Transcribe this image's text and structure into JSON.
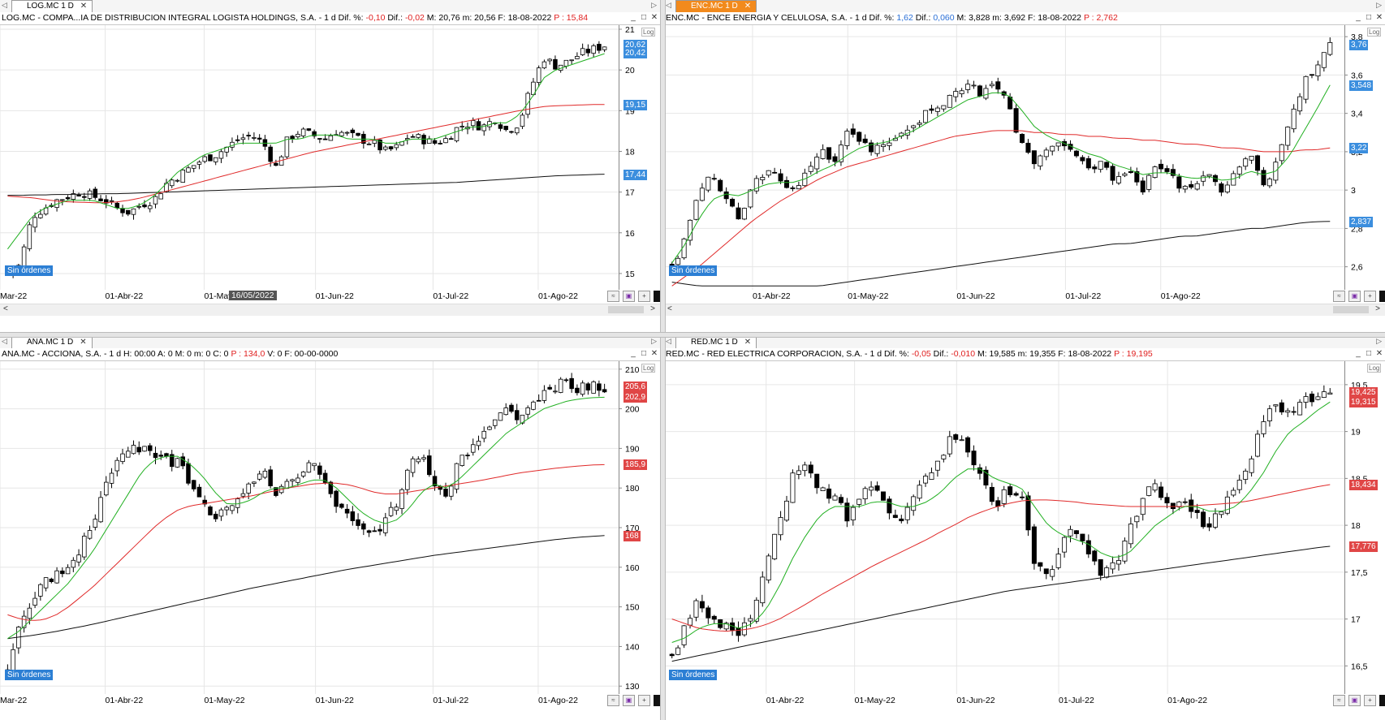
{
  "panels": [
    {
      "id": "log",
      "tab_label": "LOG.MC 1 D",
      "tab_active": false,
      "title_parts": [
        {
          "text": "LOG.MC - COMPA...IA DE DISTRIBUCION INTEGRAL LOGISTA HOLDINGS, S.A. -  1 d  Dif. %: ",
          "cls": ""
        },
        {
          "text": "-0,10",
          "cls": "neg"
        },
        {
          "text": "  Dif.: ",
          "cls": ""
        },
        {
          "text": "-0,02",
          "cls": "neg"
        },
        {
          "text": "  M: 20,76  m: 20,56  F: 18-08-2022  ",
          "cls": ""
        },
        {
          "text": "P : 15,84",
          "cls": "neg"
        }
      ],
      "y_ticks": [
        "21",
        "20",
        "19",
        "18",
        "17",
        "16",
        "15"
      ],
      "y_tick_values": [
        21,
        20,
        19,
        18,
        17,
        16,
        15
      ],
      "y_range": [
        14.6,
        21.1
      ],
      "x_ticks": [
        "Mar-22",
        "01-Abr-22",
        "01-May",
        "01-Jun-22",
        "01-Jul-22",
        "01-Ago-22"
      ],
      "hover_date": "16/05/2022",
      "price_tags": [
        {
          "value": "20,62",
          "color": "blue"
        },
        {
          "value": "20,42",
          "color": "blue"
        },
        {
          "value": "19,15",
          "color": "blue"
        },
        {
          "value": "17,44",
          "color": "blue"
        }
      ],
      "price_tag_values": [
        20.62,
        20.42,
        19.15,
        17.44
      ],
      "path": [
        15.0,
        15.2,
        16.4,
        16.6,
        16.8,
        16.9,
        17.0,
        16.9,
        16.8,
        16.6,
        16.5,
        16.7,
        16.8,
        17.2,
        17.4,
        17.6,
        17.8,
        17.9,
        18.1,
        18.3,
        18.4,
        18.2,
        17.6,
        18.3,
        18.5,
        18.4,
        18.3,
        18.5,
        18.4,
        18.3,
        18.2,
        18.0,
        18.1,
        18.4,
        18.3,
        18.2,
        18.3,
        18.6,
        18.7,
        18.6,
        18.8,
        18.5,
        18.7,
        19.6,
        20.3,
        20.1,
        20.2,
        20.4,
        20.5,
        20.6
      ],
      "ma_fast": [
        15.6,
        16.0,
        16.4,
        16.6,
        16.7,
        16.8,
        16.8,
        16.8,
        16.7,
        16.6,
        16.6,
        16.7,
        16.9,
        17.2,
        17.5,
        17.7,
        17.9,
        18.0,
        18.1,
        18.2,
        18.2,
        18.2,
        18.2,
        18.3,
        18.3,
        18.4,
        18.4,
        18.4,
        18.3,
        18.3,
        18.3,
        18.2,
        18.2,
        18.3,
        18.3,
        18.3,
        18.4,
        18.5,
        18.6,
        18.6,
        18.7,
        18.7,
        18.9,
        19.3,
        19.8,
        20.0,
        20.1,
        20.2,
        20.3,
        20.4
      ],
      "ma_mid": [
        16.9,
        16.88,
        16.86,
        16.82,
        16.78,
        16.76,
        16.75,
        16.74,
        16.74,
        16.76,
        16.8,
        16.86,
        16.94,
        17.02,
        17.1,
        17.18,
        17.26,
        17.34,
        17.42,
        17.5,
        17.58,
        17.66,
        17.74,
        17.82,
        17.9,
        17.98,
        18.04,
        18.1,
        18.16,
        18.22,
        18.28,
        18.34,
        18.4,
        18.46,
        18.52,
        18.58,
        18.64,
        18.7,
        18.76,
        18.82,
        18.88,
        18.94,
        19.0,
        19.05,
        19.1,
        19.12,
        19.13,
        19.14,
        19.15,
        19.15
      ],
      "ma_slow": [
        16.92,
        16.92,
        16.93,
        16.93,
        16.94,
        16.94,
        16.95,
        16.95,
        16.96,
        16.96,
        16.97,
        16.98,
        16.99,
        17.0,
        17.01,
        17.02,
        17.03,
        17.04,
        17.05,
        17.06,
        17.07,
        17.08,
        17.09,
        17.1,
        17.11,
        17.12,
        17.13,
        17.14,
        17.15,
        17.16,
        17.17,
        17.18,
        17.19,
        17.2,
        17.21,
        17.22,
        17.23,
        17.24,
        17.26,
        17.28,
        17.3,
        17.32,
        17.34,
        17.36,
        17.38,
        17.4,
        17.41,
        17.42,
        17.43,
        17.44
      ],
      "show_scrollbar": true
    },
    {
      "id": "enc",
      "tab_label": "ENC.MC 1 D",
      "tab_active": true,
      "title_parts": [
        {
          "text": "ENC.MC - ENCE ENERGIA Y CELULOSA, S.A. -  1 d  Dif. %: ",
          "cls": ""
        },
        {
          "text": "1,62",
          "cls": "pos"
        },
        {
          "text": "  Dif.: ",
          "cls": ""
        },
        {
          "text": "0,060",
          "cls": "pos"
        },
        {
          "text": "  M: 3,828  m: 3,692  F: 18-08-2022  ",
          "cls": ""
        },
        {
          "text": "P : 2,762",
          "cls": "neg"
        }
      ],
      "y_ticks": [
        "3,8",
        "3,6",
        "3,4",
        "3,2",
        "3",
        "2,8",
        "2,6"
      ],
      "y_tick_values": [
        3.8,
        3.6,
        3.4,
        3.2,
        3.0,
        2.8,
        2.6
      ],
      "y_range": [
        2.48,
        3.86
      ],
      "x_ticks": [
        "01-Abr-22",
        "01-May-22",
        "01-Jun-22",
        "01-Jul-22",
        "01-Ago-22"
      ],
      "hover_date": "",
      "price_tags": [
        {
          "value": "3,76",
          "color": "blue"
        },
        {
          "value": "3,548",
          "color": "blue"
        },
        {
          "value": "3,22",
          "color": "blue"
        },
        {
          "value": "2,837",
          "color": "blue"
        }
      ],
      "price_tag_values": [
        3.76,
        3.548,
        3.22,
        2.837
      ],
      "path": [
        2.6,
        2.75,
        3.0,
        3.1,
        2.95,
        2.85,
        3.05,
        3.1,
        3.05,
        3.0,
        3.1,
        3.2,
        3.15,
        3.3,
        3.25,
        3.2,
        3.25,
        3.3,
        3.35,
        3.4,
        3.45,
        3.5,
        3.55,
        3.5,
        3.55,
        3.45,
        3.25,
        3.15,
        3.2,
        3.25,
        3.2,
        3.1,
        3.15,
        3.05,
        3.1,
        3.0,
        3.15,
        3.1,
        3.0,
        3.05,
        3.1,
        3.0,
        3.1,
        3.2,
        3.0,
        3.15,
        3.35,
        3.55,
        3.65,
        3.76
      ],
      "ma_fast": [
        2.62,
        2.72,
        2.85,
        2.95,
        2.98,
        2.97,
        3.0,
        3.03,
        3.04,
        3.04,
        3.06,
        3.1,
        3.13,
        3.18,
        3.22,
        3.24,
        3.25,
        3.28,
        3.31,
        3.35,
        3.39,
        3.43,
        3.47,
        3.49,
        3.51,
        3.5,
        3.42,
        3.33,
        3.28,
        3.25,
        3.22,
        3.19,
        3.17,
        3.13,
        3.11,
        3.08,
        3.09,
        3.09,
        3.07,
        3.06,
        3.07,
        3.05,
        3.06,
        3.1,
        3.08,
        3.1,
        3.18,
        3.3,
        3.42,
        3.548
      ],
      "ma_mid": [
        2.5,
        2.55,
        2.6,
        2.66,
        2.72,
        2.78,
        2.84,
        2.89,
        2.94,
        2.98,
        3.02,
        3.06,
        3.09,
        3.12,
        3.14,
        3.16,
        3.18,
        3.2,
        3.22,
        3.24,
        3.26,
        3.28,
        3.29,
        3.3,
        3.31,
        3.31,
        3.31,
        3.3,
        3.3,
        3.29,
        3.29,
        3.28,
        3.28,
        3.27,
        3.27,
        3.26,
        3.26,
        3.25,
        3.24,
        3.24,
        3.23,
        3.22,
        3.22,
        3.21,
        3.2,
        3.2,
        3.2,
        3.21,
        3.21,
        3.22
      ],
      "ma_slow": [
        2.52,
        2.51,
        2.5,
        2.5,
        2.5,
        2.5,
        2.5,
        2.5,
        2.5,
        2.5,
        2.5,
        2.5,
        2.51,
        2.52,
        2.53,
        2.54,
        2.55,
        2.56,
        2.57,
        2.58,
        2.59,
        2.6,
        2.61,
        2.62,
        2.63,
        2.64,
        2.65,
        2.66,
        2.67,
        2.68,
        2.69,
        2.7,
        2.71,
        2.72,
        2.72,
        2.73,
        2.74,
        2.75,
        2.76,
        2.76,
        2.77,
        2.78,
        2.79,
        2.8,
        2.8,
        2.81,
        2.82,
        2.83,
        2.835,
        2.837
      ],
      "show_scrollbar": true
    },
    {
      "id": "ana",
      "tab_label": "ANA.MC 1 D",
      "tab_active": false,
      "title_parts": [
        {
          "text": "ANA.MC - ACCIONA, S.A. -  1 d  H: 00:00  A: 0  M: 0  m: 0  C: 0  ",
          "cls": ""
        },
        {
          "text": "P : 134,0",
          "cls": "neg"
        },
        {
          "text": "  V: 0  F: 00-00-0000",
          "cls": ""
        }
      ],
      "y_ticks": [
        "210",
        "200",
        "190",
        "180",
        "170",
        "160",
        "150",
        "140",
        "130"
      ],
      "y_tick_values": [
        210,
        200,
        190,
        180,
        170,
        160,
        150,
        140,
        130
      ],
      "y_range": [
        128,
        212
      ],
      "x_ticks": [
        "Mar-22",
        "01-Abr-22",
        "01-May-22",
        "01-Jun-22",
        "01-Jul-22",
        "01-Ago-22"
      ],
      "hover_date": "",
      "price_tags": [
        {
          "value": "205,6",
          "color": "red"
        },
        {
          "value": "202,9",
          "color": "red"
        },
        {
          "value": "185,9",
          "color": "red"
        },
        {
          "value": "168",
          "color": "red"
        }
      ],
      "price_tag_values": [
        205.6,
        202.9,
        185.9,
        168
      ],
      "path": [
        134,
        145,
        152,
        156,
        158,
        160,
        165,
        172,
        180,
        186,
        189,
        190,
        188,
        187,
        186,
        182,
        176,
        172,
        174,
        178,
        180,
        184,
        178,
        182,
        184,
        186,
        181,
        176,
        172,
        170,
        168,
        172,
        176,
        185,
        190,
        180,
        178,
        186,
        190,
        194,
        198,
        200,
        198,
        200,
        204,
        206,
        207,
        205,
        206,
        205.6
      ],
      "ma_fast": [
        142,
        144,
        147,
        150,
        153,
        156,
        160,
        164,
        169,
        174,
        179,
        184,
        187,
        188,
        188,
        186,
        183,
        179,
        176,
        176,
        177,
        179,
        180,
        180,
        181,
        182,
        182,
        180,
        177,
        174,
        172,
        171,
        172,
        175,
        179,
        181,
        180,
        182,
        185,
        188,
        191,
        194,
        196,
        198,
        200,
        201,
        202,
        202.5,
        202.8,
        202.9
      ],
      "ma_mid": [
        148,
        147,
        146.5,
        146.8,
        148,
        150,
        152.5,
        155,
        158,
        161,
        164,
        167,
        170,
        172.5,
        174.5,
        175.5,
        176,
        176.5,
        177,
        177.5,
        178,
        178.7,
        179.3,
        180,
        180.5,
        181,
        181.2,
        181.2,
        180.8,
        180,
        179,
        178.5,
        178.5,
        179,
        179.5,
        180,
        180.5,
        181,
        181.5,
        182,
        182.6,
        183.2,
        183.8,
        184.2,
        184.6,
        185,
        185.3,
        185.6,
        185.8,
        185.9
      ],
      "ma_slow": [
        142.0,
        142.4,
        142.8,
        143.3,
        143.8,
        144.4,
        145.0,
        145.6,
        146.3,
        147.0,
        147.7,
        148.4,
        149.1,
        149.8,
        150.5,
        151.2,
        151.9,
        152.6,
        153.3,
        154.0,
        154.7,
        155.3,
        155.9,
        156.5,
        157.1,
        157.7,
        158.3,
        158.9,
        159.5,
        160.0,
        160.5,
        161.0,
        161.5,
        162.0,
        162.5,
        163.0,
        163.4,
        163.8,
        164.2,
        164.6,
        165.0,
        165.4,
        165.8,
        166.2,
        166.6,
        167.0,
        167.3,
        167.6,
        167.8,
        168.0
      ],
      "show_scrollbar": false
    },
    {
      "id": "red",
      "tab_label": "RED.MC 1 D",
      "tab_active": false,
      "title_parts": [
        {
          "text": "RED.MC - RED ELECTRICA CORPORACION, S.A. -  1 d  Dif. %: ",
          "cls": ""
        },
        {
          "text": "-0,05",
          "cls": "neg"
        },
        {
          "text": "  Dif.: ",
          "cls": ""
        },
        {
          "text": "-0,010",
          "cls": "neg"
        },
        {
          "text": "  M: 19,585  m: 19,355  F: 18-08-2022  ",
          "cls": ""
        },
        {
          "text": "P : 19,195",
          "cls": "neg"
        }
      ],
      "y_ticks": [
        "19,5",
        "19",
        "18,5",
        "18",
        "17,5",
        "17",
        "16,5"
      ],
      "y_tick_values": [
        19.5,
        19.0,
        18.5,
        18.0,
        17.5,
        17.0,
        16.5
      ],
      "y_range": [
        16.2,
        19.75
      ],
      "x_ticks": [
        "01-Abr-22",
        "01-May-22",
        "01-Jun-22",
        "01-Jul-22",
        "01-Ago-22"
      ],
      "hover_date": "",
      "price_tags": [
        {
          "value": "19,425",
          "color": "red"
        },
        {
          "value": "19,315",
          "color": "red"
        },
        {
          "value": "18,434",
          "color": "red"
        },
        {
          "value": "17,776",
          "color": "red"
        }
      ],
      "price_tag_values": [
        19.425,
        19.315,
        18.434,
        17.776
      ],
      "path": [
        16.6,
        16.9,
        17.2,
        17.0,
        16.9,
        16.8,
        17.1,
        17.6,
        18.1,
        18.5,
        18.6,
        18.4,
        18.3,
        18.1,
        18.3,
        18.4,
        18.2,
        18.0,
        18.3,
        18.5,
        18.7,
        19.0,
        18.8,
        18.5,
        18.2,
        18.4,
        18.3,
        17.6,
        17.4,
        17.8,
        18.0,
        17.7,
        17.5,
        17.6,
        17.9,
        18.3,
        18.4,
        18.2,
        18.3,
        18.1,
        18.0,
        18.2,
        18.4,
        18.7,
        19.1,
        19.3,
        19.2,
        19.3,
        19.4,
        19.425
      ],
      "ma_fast": [
        16.75,
        16.8,
        16.9,
        16.95,
        16.95,
        16.9,
        16.95,
        17.1,
        17.35,
        17.65,
        17.9,
        18.1,
        18.2,
        18.2,
        18.2,
        18.25,
        18.25,
        18.2,
        18.2,
        18.25,
        18.35,
        18.5,
        18.6,
        18.6,
        18.5,
        18.45,
        18.4,
        18.2,
        18.0,
        17.9,
        17.85,
        17.8,
        17.7,
        17.65,
        17.7,
        17.85,
        18.0,
        18.1,
        18.2,
        18.2,
        18.15,
        18.15,
        18.2,
        18.35,
        18.55,
        18.8,
        19.0,
        19.1,
        19.22,
        19.315
      ],
      "ma_mid": [
        17.0,
        16.95,
        16.9,
        16.88,
        16.87,
        16.88,
        16.9,
        16.94,
        17.0,
        17.08,
        17.16,
        17.25,
        17.33,
        17.41,
        17.49,
        17.57,
        17.64,
        17.71,
        17.78,
        17.85,
        17.93,
        18.0,
        18.08,
        18.14,
        18.19,
        18.23,
        18.26,
        18.27,
        18.27,
        18.26,
        18.25,
        18.23,
        18.22,
        18.21,
        18.2,
        18.2,
        18.2,
        18.2,
        18.2,
        18.21,
        18.22,
        18.23,
        18.24,
        18.26,
        18.29,
        18.32,
        18.35,
        18.38,
        18.41,
        18.434
      ],
      "ma_slow": [
        16.55,
        16.58,
        16.61,
        16.64,
        16.67,
        16.7,
        16.73,
        16.76,
        16.79,
        16.82,
        16.85,
        16.88,
        16.91,
        16.94,
        16.97,
        17.0,
        17.03,
        17.06,
        17.09,
        17.12,
        17.15,
        17.18,
        17.21,
        17.24,
        17.27,
        17.3,
        17.32,
        17.34,
        17.36,
        17.38,
        17.4,
        17.42,
        17.44,
        17.46,
        17.48,
        17.5,
        17.52,
        17.54,
        17.56,
        17.58,
        17.6,
        17.62,
        17.64,
        17.66,
        17.68,
        17.7,
        17.72,
        17.74,
        17.76,
        17.776
      ],
      "show_scrollbar": false
    }
  ],
  "common": {
    "sin_ordenes": "Sin órdenes",
    "log_label": "Log",
    "close_glyph": "✕",
    "colors": {
      "bull_candle": "#ffffff",
      "bear_candle": "#000000",
      "ma_fast": "#22b022",
      "ma_mid": "#e02a2a",
      "ma_slow": "#111111",
      "grid": "#e6e6e6",
      "tag_blue": "#3b8ede",
      "tag_red": "#e04646",
      "active_tab": "#f28a1c"
    }
  }
}
